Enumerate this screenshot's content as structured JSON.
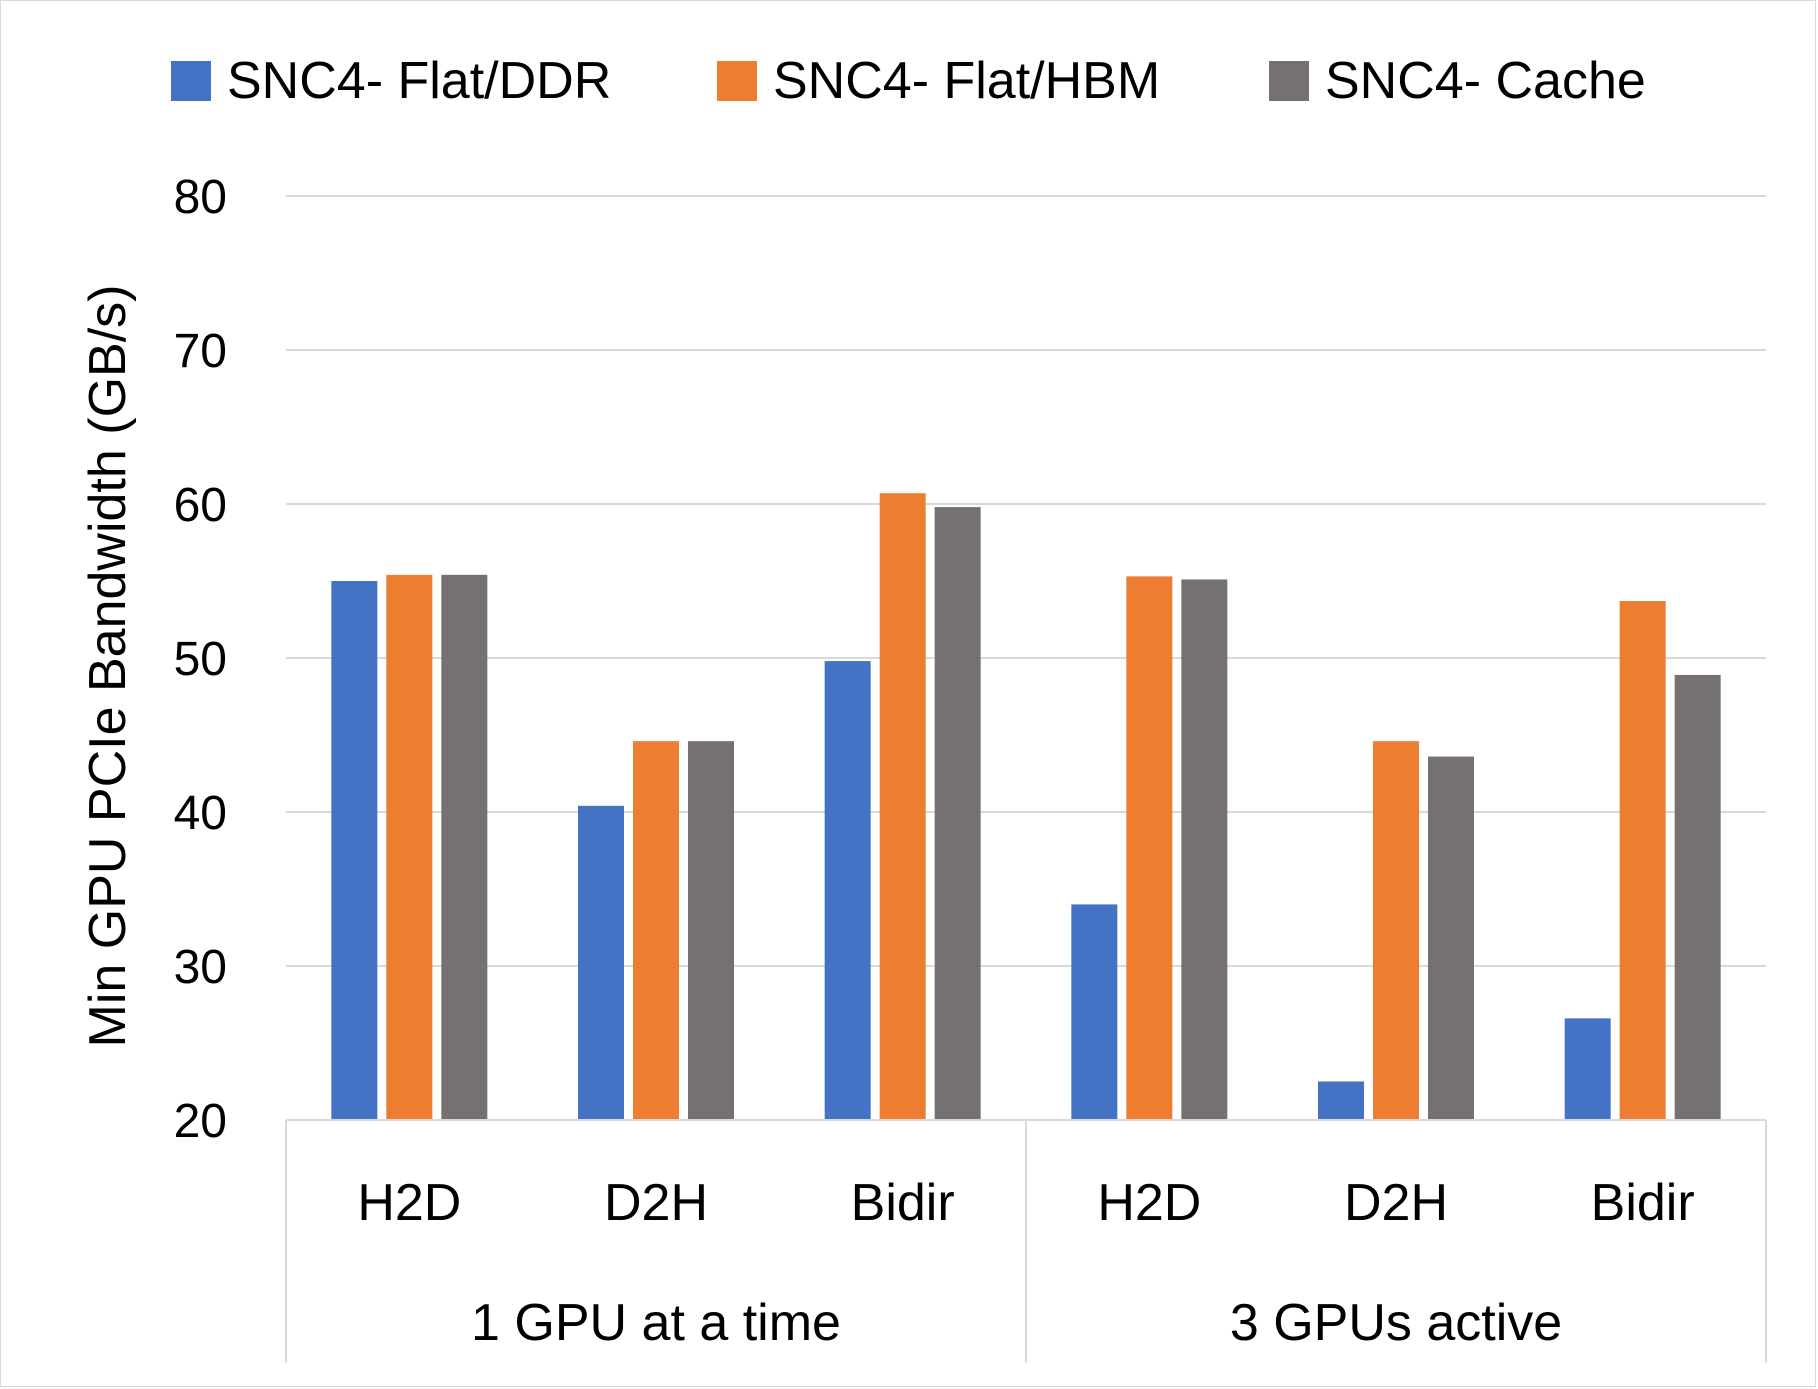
{
  "chart_data": {
    "type": "bar",
    "title": "",
    "xlabel": "",
    "ylabel": "Min GPU PCIe Bandwidth (GB/s)",
    "ylim": [
      20,
      80
    ],
    "yticks": [
      20,
      30,
      40,
      50,
      60,
      70,
      80
    ],
    "grid": true,
    "legend_position": "top",
    "categories": [
      "H2D",
      "D2H",
      "Bidir",
      "H2D",
      "D2H",
      "Bidir"
    ],
    "groups": [
      {
        "label": "1 GPU at a time",
        "span": 3
      },
      {
        "label": "3 GPUs active",
        "span": 3
      }
    ],
    "series": [
      {
        "name": "SNC4- Flat/DDR",
        "color": "#4472c4",
        "values": [
          55.0,
          40.4,
          49.8,
          34.0,
          22.5,
          26.6
        ]
      },
      {
        "name": "SNC4- Flat/HBM",
        "color": "#ed7d31",
        "values": [
          55.4,
          44.6,
          60.7,
          55.3,
          44.6,
          53.7
        ]
      },
      {
        "name": "SNC4- Cache",
        "color": "#767171",
        "values": [
          55.4,
          44.6,
          59.8,
          55.1,
          43.6,
          48.9
        ]
      }
    ]
  }
}
